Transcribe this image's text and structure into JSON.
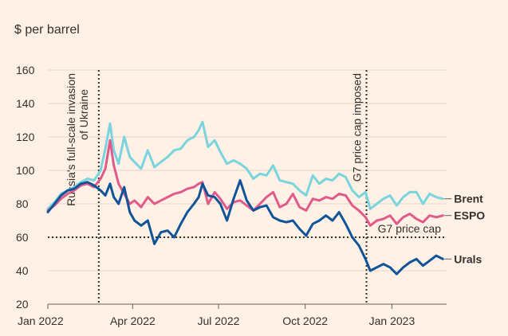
{
  "chart_data": {
    "type": "line",
    "unit_label": "$ per barrel",
    "ylim": [
      20,
      160
    ],
    "y_ticks": [
      20,
      40,
      60,
      80,
      100,
      120,
      140,
      160
    ],
    "x_range": [
      "2022-01-01",
      "2023-02-28"
    ],
    "x_ticks": [
      {
        "date": "2022-01-01",
        "label": "Jan 2022"
      },
      {
        "date": "2022-04-01",
        "label": "Apr 2022"
      },
      {
        "date": "2022-07-01",
        "label": "Jul 2022"
      },
      {
        "date": "2022-10-01",
        "label": "Oct 2022"
      },
      {
        "date": "2023-01-01",
        "label": "Jan 2023"
      }
    ],
    "grid": "horizontal",
    "price_cap": {
      "value": 60,
      "label": "G7 price cap"
    },
    "annotations": [
      {
        "date": "2022-02-24",
        "label_line1": "Russia's full-scale invasion",
        "label_line2": "of Ukraine"
      },
      {
        "date": "2022-12-05",
        "label_line1": "G7 price cap imposed",
        "label_line2": ""
      }
    ],
    "series": [
      {
        "name": "Brent",
        "color": "#7AD4DE",
        "points": [
          [
            "2022-01-01",
            77
          ],
          [
            "2022-01-08",
            81
          ],
          [
            "2022-01-15",
            86
          ],
          [
            "2022-01-22",
            88
          ],
          [
            "2022-01-29",
            90
          ],
          [
            "2022-02-05",
            93
          ],
          [
            "2022-02-12",
            95
          ],
          [
            "2022-02-19",
            94
          ],
          [
            "2022-02-26",
            100
          ],
          [
            "2022-03-03",
            113
          ],
          [
            "2022-03-08",
            128
          ],
          [
            "2022-03-12",
            112
          ],
          [
            "2022-03-17",
            104
          ],
          [
            "2022-03-23",
            120
          ],
          [
            "2022-03-29",
            108
          ],
          [
            "2022-04-03",
            105
          ],
          [
            "2022-04-10",
            101
          ],
          [
            "2022-04-17",
            112
          ],
          [
            "2022-04-24",
            102
          ],
          [
            "2022-05-01",
            105
          ],
          [
            "2022-05-08",
            108
          ],
          [
            "2022-05-15",
            112
          ],
          [
            "2022-05-22",
            113
          ],
          [
            "2022-05-29",
            118
          ],
          [
            "2022-06-05",
            120
          ],
          [
            "2022-06-10",
            124
          ],
          [
            "2022-06-14",
            129
          ],
          [
            "2022-06-20",
            114
          ],
          [
            "2022-06-27",
            118
          ],
          [
            "2022-07-03",
            111
          ],
          [
            "2022-07-10",
            104
          ],
          [
            "2022-07-17",
            106
          ],
          [
            "2022-07-24",
            104
          ],
          [
            "2022-07-31",
            101
          ],
          [
            "2022-08-07",
            95
          ],
          [
            "2022-08-14",
            98
          ],
          [
            "2022-08-21",
            97
          ],
          [
            "2022-08-28",
            103
          ],
          [
            "2022-09-04",
            94
          ],
          [
            "2022-09-11",
            93
          ],
          [
            "2022-09-18",
            92
          ],
          [
            "2022-09-25",
            88
          ],
          [
            "2022-10-02",
            85
          ],
          [
            "2022-10-09",
            97
          ],
          [
            "2022-10-16",
            92
          ],
          [
            "2022-10-23",
            95
          ],
          [
            "2022-10-30",
            94
          ],
          [
            "2022-11-06",
            98
          ],
          [
            "2022-11-13",
            96
          ],
          [
            "2022-11-20",
            88
          ],
          [
            "2022-11-27",
            84
          ],
          [
            "2022-12-04",
            87
          ],
          [
            "2022-12-09",
            77
          ],
          [
            "2022-12-16",
            80
          ],
          [
            "2022-12-23",
            83
          ],
          [
            "2022-12-30",
            85
          ],
          [
            "2023-01-06",
            79
          ],
          [
            "2023-01-13",
            84
          ],
          [
            "2023-01-20",
            87
          ],
          [
            "2023-01-27",
            87
          ],
          [
            "2023-02-03",
            80
          ],
          [
            "2023-02-10",
            86
          ],
          [
            "2023-02-17",
            84
          ],
          [
            "2023-02-24",
            83
          ]
        ]
      },
      {
        "name": "ESPO",
        "color": "#E15B8A",
        "points": [
          [
            "2022-01-01",
            76
          ],
          [
            "2022-01-08",
            79
          ],
          [
            "2022-01-15",
            83
          ],
          [
            "2022-01-22",
            86
          ],
          [
            "2022-01-29",
            88
          ],
          [
            "2022-02-05",
            91
          ],
          [
            "2022-02-12",
            92
          ],
          [
            "2022-02-19",
            90
          ],
          [
            "2022-02-26",
            95
          ],
          [
            "2022-03-03",
            101
          ],
          [
            "2022-03-08",
            118
          ],
          [
            "2022-03-12",
            103
          ],
          [
            "2022-03-17",
            92
          ],
          [
            "2022-03-23",
            86
          ],
          [
            "2022-03-29",
            80
          ],
          [
            "2022-04-03",
            82
          ],
          [
            "2022-04-10",
            78
          ],
          [
            "2022-04-17",
            84
          ],
          [
            "2022-04-24",
            80
          ],
          [
            "2022-05-01",
            82
          ],
          [
            "2022-05-08",
            84
          ],
          [
            "2022-05-15",
            86
          ],
          [
            "2022-05-22",
            87
          ],
          [
            "2022-05-29",
            89
          ],
          [
            "2022-06-05",
            90
          ],
          [
            "2022-06-10",
            92
          ],
          [
            "2022-06-14",
            93
          ],
          [
            "2022-06-20",
            80
          ],
          [
            "2022-06-27",
            87
          ],
          [
            "2022-07-03",
            83
          ],
          [
            "2022-07-10",
            77
          ],
          [
            "2022-07-17",
            81
          ],
          [
            "2022-07-24",
            82
          ],
          [
            "2022-07-31",
            79
          ],
          [
            "2022-08-07",
            76
          ],
          [
            "2022-08-14",
            80
          ],
          [
            "2022-08-21",
            84
          ],
          [
            "2022-08-28",
            87
          ],
          [
            "2022-09-04",
            78
          ],
          [
            "2022-09-11",
            80
          ],
          [
            "2022-09-18",
            86
          ],
          [
            "2022-09-25",
            78
          ],
          [
            "2022-10-02",
            76
          ],
          [
            "2022-10-09",
            83
          ],
          [
            "2022-10-16",
            82
          ],
          [
            "2022-10-23",
            84
          ],
          [
            "2022-10-30",
            83
          ],
          [
            "2022-11-06",
            86
          ],
          [
            "2022-11-13",
            85
          ],
          [
            "2022-11-20",
            79
          ],
          [
            "2022-11-27",
            76
          ],
          [
            "2022-12-04",
            72
          ],
          [
            "2022-12-09",
            67
          ],
          [
            "2022-12-16",
            70
          ],
          [
            "2022-12-23",
            71
          ],
          [
            "2022-12-30",
            73
          ],
          [
            "2023-01-06",
            68
          ],
          [
            "2023-01-13",
            72
          ],
          [
            "2023-01-20",
            74
          ],
          [
            "2023-01-27",
            71
          ],
          [
            "2023-02-03",
            69
          ],
          [
            "2023-02-10",
            73
          ],
          [
            "2023-02-17",
            72
          ],
          [
            "2023-02-24",
            73
          ]
        ]
      },
      {
        "name": "Urals",
        "color": "#0F5499",
        "points": [
          [
            "2022-01-01",
            75
          ],
          [
            "2022-01-08",
            80
          ],
          [
            "2022-01-15",
            85
          ],
          [
            "2022-01-22",
            88
          ],
          [
            "2022-01-29",
            89
          ],
          [
            "2022-02-05",
            92
          ],
          [
            "2022-02-12",
            93
          ],
          [
            "2022-02-19",
            91
          ],
          [
            "2022-02-26",
            88
          ],
          [
            "2022-03-03",
            85
          ],
          [
            "2022-03-08",
            92
          ],
          [
            "2022-03-12",
            84
          ],
          [
            "2022-03-17",
            80
          ],
          [
            "2022-03-23",
            90
          ],
          [
            "2022-03-29",
            75
          ],
          [
            "2022-04-03",
            70
          ],
          [
            "2022-04-10",
            67
          ],
          [
            "2022-04-17",
            70
          ],
          [
            "2022-04-24",
            56
          ],
          [
            "2022-05-01",
            63
          ],
          [
            "2022-05-08",
            64
          ],
          [
            "2022-05-15",
            60
          ],
          [
            "2022-05-22",
            68
          ],
          [
            "2022-05-29",
            75
          ],
          [
            "2022-06-05",
            80
          ],
          [
            "2022-06-10",
            84
          ],
          [
            "2022-06-14",
            92
          ],
          [
            "2022-06-20",
            85
          ],
          [
            "2022-06-27",
            84
          ],
          [
            "2022-07-03",
            80
          ],
          [
            "2022-07-10",
            70
          ],
          [
            "2022-07-17",
            83
          ],
          [
            "2022-07-24",
            94
          ],
          [
            "2022-07-31",
            82
          ],
          [
            "2022-08-07",
            76
          ],
          [
            "2022-08-14",
            78
          ],
          [
            "2022-08-21",
            79
          ],
          [
            "2022-08-28",
            72
          ],
          [
            "2022-09-04",
            70
          ],
          [
            "2022-09-11",
            69
          ],
          [
            "2022-09-18",
            70
          ],
          [
            "2022-09-25",
            65
          ],
          [
            "2022-10-02",
            61
          ],
          [
            "2022-10-09",
            68
          ],
          [
            "2022-10-16",
            70
          ],
          [
            "2022-10-23",
            73
          ],
          [
            "2022-10-30",
            70
          ],
          [
            "2022-11-06",
            75
          ],
          [
            "2022-11-13",
            68
          ],
          [
            "2022-11-20",
            60
          ],
          [
            "2022-11-27",
            55
          ],
          [
            "2022-12-04",
            47
          ],
          [
            "2022-12-09",
            40
          ],
          [
            "2022-12-16",
            42
          ],
          [
            "2022-12-23",
            44
          ],
          [
            "2022-12-30",
            42
          ],
          [
            "2023-01-06",
            38
          ],
          [
            "2023-01-13",
            42
          ],
          [
            "2023-01-20",
            45
          ],
          [
            "2023-01-27",
            47
          ],
          [
            "2023-02-03",
            43
          ],
          [
            "2023-02-10",
            46
          ],
          [
            "2023-02-17",
            49
          ],
          [
            "2023-02-24",
            47
          ]
        ]
      }
    ]
  }
}
